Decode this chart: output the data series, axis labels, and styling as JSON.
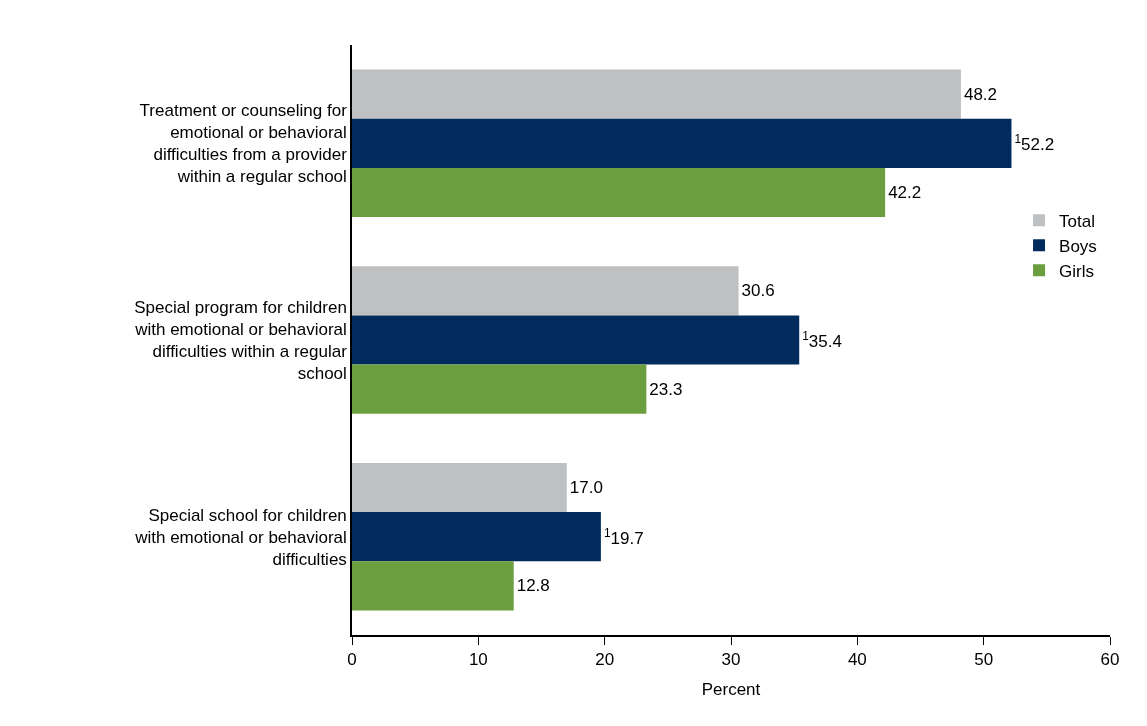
{
  "chart_data": {
    "type": "bar",
    "orientation": "horizontal",
    "xlabel": "Percent",
    "categories": [
      "Treatment or counseling for emotional or behavioral difficulties from a provider within a regular school",
      "Special program for children with emotional or behavioral difficulties within a regular school",
      "Special school for children with emotional or behavioral difficulties"
    ],
    "series": [
      {
        "name": "Total",
        "color": "#bfc0c2",
        "values": [
          48.2,
          30.6,
          17.0
        ],
        "value_labels": [
          "48.2",
          "30.6",
          "17.0"
        ]
      },
      {
        "name": "Boys",
        "color": "#002b5c",
        "values": [
          52.2,
          35.4,
          19.7
        ],
        "value_labels": [
          "$^{1}$52.2",
          "$^{1}$35.4",
          "$^{1}$19.7"
        ]
      },
      {
        "name": "Girls",
        "color": "#6a9e3f",
        "values": [
          42.2,
          23.3,
          12.8
        ],
        "value_labels": [
          "42.2",
          "23.3",
          "12.8"
        ]
      }
    ],
    "xlim": [
      0,
      60
    ],
    "xticks": [
      0,
      10,
      20,
      30,
      40,
      50,
      60
    ],
    "legend": "right"
  }
}
